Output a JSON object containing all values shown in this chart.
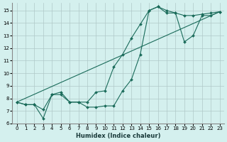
{
  "background_color": "#d4f0ee",
  "grid_color": "#b0c8c8",
  "line_color": "#1a6b5a",
  "xlabel": "Humidex (Indice chaleur)",
  "xlim": [
    -0.5,
    23.5
  ],
  "ylim": [
    6,
    15.6
  ],
  "xticks": [
    0,
    1,
    2,
    3,
    4,
    5,
    6,
    7,
    8,
    9,
    10,
    11,
    12,
    13,
    14,
    15,
    16,
    17,
    18,
    19,
    20,
    21,
    22,
    23
  ],
  "yticks": [
    6,
    7,
    8,
    9,
    10,
    11,
    12,
    13,
    14,
    15
  ],
  "curve1_x": [
    0,
    1,
    2,
    3,
    4,
    5,
    6,
    7,
    8,
    9,
    10,
    11,
    12,
    13,
    14,
    15,
    16,
    17,
    18,
    19,
    20,
    21,
    22,
    23
  ],
  "curve1_y": [
    7.7,
    7.5,
    7.5,
    7.1,
    8.3,
    8.5,
    7.7,
    7.7,
    7.7,
    8.5,
    8.6,
    10.5,
    11.5,
    12.8,
    13.9,
    15.0,
    15.3,
    15.0,
    14.8,
    14.6,
    14.6,
    14.7,
    14.8,
    14.9
  ],
  "curve2_x": [
    0,
    1,
    2,
    3,
    4,
    5,
    6,
    7,
    8,
    9,
    10,
    11,
    12,
    13,
    14,
    15,
    16,
    17,
    18,
    19,
    20,
    21,
    22,
    23
  ],
  "curve2_y": [
    7.7,
    7.5,
    7.5,
    6.4,
    8.3,
    8.3,
    7.7,
    7.7,
    7.3,
    7.3,
    7.4,
    7.4,
    8.6,
    9.5,
    11.5,
    15.0,
    15.3,
    14.8,
    14.8,
    12.5,
    13.0,
    14.6,
    14.6,
    14.9
  ],
  "curve3_x": [
    0,
    23
  ],
  "curve3_y": [
    7.7,
    14.9
  ]
}
